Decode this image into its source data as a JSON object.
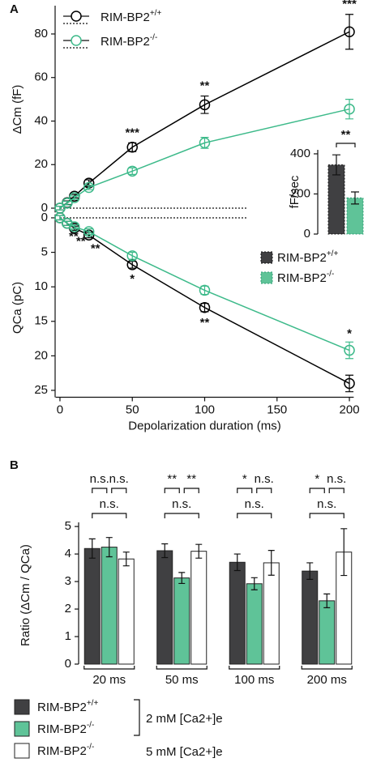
{
  "chart_data": [
    {
      "type": "line",
      "panel": "A",
      "ylabel": "ΔCm (fF)",
      "xlim": [
        -3,
        203
      ],
      "ylim": [
        -2,
        93
      ],
      "yticks": [
        0,
        20,
        40,
        60,
        80
      ],
      "x": [
        0,
        5,
        10,
        20,
        50,
        100,
        200
      ],
      "legend": "upper left",
      "series": [
        {
          "name": "RIM-BP2+/+",
          "color": "#000000",
          "values": [
            0,
            2.5,
            5.5,
            11.5,
            28,
            47.5,
            81
          ],
          "errors": [
            0.8,
            0.8,
            0.8,
            1.5,
            2,
            4,
            8
          ]
        },
        {
          "name": "RIM-BP2-/-",
          "color": "#3dba8a",
          "values": [
            0,
            2.3,
            4.8,
            9.5,
            17,
            30,
            45.5
          ],
          "errors": [
            0.8,
            0.8,
            0.8,
            1,
            1.5,
            2.5,
            4.5
          ]
        }
      ],
      "significance": [
        null,
        null,
        null,
        null,
        "***",
        "**",
        "***"
      ]
    },
    {
      "type": "line",
      "ylabel": "QCa (pC)",
      "xlabel": "Depolarization duration (ms)",
      "xlim": [
        -3,
        203
      ],
      "ylim": [
        26,
        -0.5
      ],
      "yticks": [
        0,
        5,
        10,
        15,
        20,
        25
      ],
      "xticks": [
        0,
        50,
        100,
        150,
        200
      ],
      "x": [
        0,
        5,
        10,
        20,
        50,
        100,
        200
      ],
      "series": [
        {
          "name": "RIM-BP2+/+",
          "color": "#000000",
          "values": [
            0,
            0.8,
            1.5,
            2.5,
            6.8,
            13,
            24
          ],
          "errors": [
            0.3,
            0.3,
            0.3,
            0.4,
            0.5,
            0.6,
            1.2
          ]
        },
        {
          "name": "RIM-BP2-/-",
          "color": "#3dba8a",
          "values": [
            0,
            0.8,
            1.3,
            2,
            5.5,
            10.5,
            19.2
          ],
          "errors": [
            0.3,
            0.3,
            0.3,
            0.4,
            0.5,
            0.6,
            1.2
          ]
        }
      ],
      "significance": [
        null,
        "**",
        "**",
        "**",
        "*",
        "**",
        "*"
      ]
    },
    {
      "type": "bar",
      "ylabel": "fF/sec",
      "ylim": [
        0,
        420
      ],
      "yticks": [
        0,
        200,
        400
      ],
      "legend": "below",
      "series": [
        {
          "name": "RIM-BP2+/+",
          "color": "#404042",
          "values": [
            345
          ],
          "errors": [
            50
          ]
        },
        {
          "name": "RIM-BP2-/-",
          "color": "#5fc398",
          "values": [
            180
          ],
          "errors": [
            30
          ]
        }
      ],
      "significance": "**"
    },
    {
      "type": "bar",
      "panel": "B",
      "ylabel": "Ratio (ΔCm / QCa)",
      "ylim": [
        0,
        5.15
      ],
      "yticks": [
        0,
        1,
        2,
        3,
        4,
        5
      ],
      "categories": [
        "20 ms",
        "50 ms",
        "100 ms",
        "200 ms"
      ],
      "series": [
        {
          "name": "RIM-BP2+/+",
          "color": "#404042",
          "values": [
            4.2,
            4.12,
            3.7,
            3.38
          ],
          "errors": [
            0.35,
            0.25,
            0.3,
            0.3
          ]
        },
        {
          "name": "RIM-BP2-/-",
          "color": "#5fc398",
          "values": [
            4.25,
            3.13,
            2.92,
            2.3
          ],
          "errors": [
            0.35,
            0.2,
            0.22,
            0.25
          ]
        },
        {
          "name": "RIM-BP2-/-",
          "color": "#ffffff",
          "values": [
            3.82,
            4.1,
            3.68,
            4.07
          ],
          "errors": [
            0.25,
            0.25,
            0.45,
            0.85
          ]
        }
      ],
      "significance": [
        [
          "n.s.",
          "n.s.",
          "n.s."
        ],
        [
          "**",
          "**",
          "n.s."
        ],
        [
          "*",
          "n.s.",
          "n.s."
        ],
        [
          "*",
          "n.s.",
          "n.s."
        ]
      ],
      "conditions": [
        "2 mM [Ca2+]e",
        "5 mM [Ca2+]e"
      ],
      "legend": "bottom"
    }
  ]
}
